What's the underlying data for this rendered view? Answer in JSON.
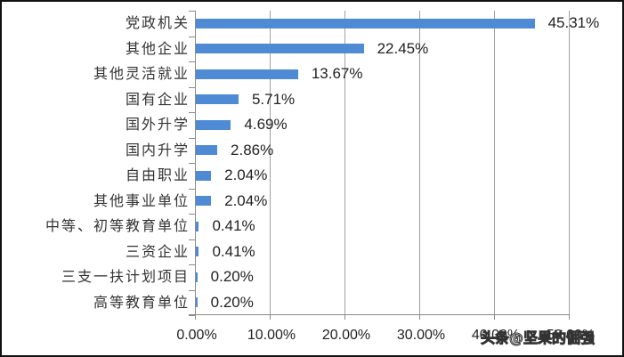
{
  "chart_data": {
    "type": "bar",
    "orientation": "horizontal",
    "title": "",
    "xlabel": "",
    "ylabel": "",
    "categories": [
      "党政机关",
      "其他企业",
      "其他灵活就业",
      "国有企业",
      "国外升学",
      "国内升学",
      "自由职业",
      "其他事业单位",
      "中等、初等教育单位",
      "三资企业",
      "三支一扶计划项目",
      "高等教育单位"
    ],
    "values": [
      45.31,
      22.45,
      13.67,
      5.71,
      4.69,
      2.86,
      2.04,
      2.04,
      0.41,
      0.41,
      0.2,
      0.2
    ],
    "value_labels": [
      "45.31%",
      "22.45%",
      "13.67%",
      "5.71%",
      "4.69%",
      "2.86%",
      "2.04%",
      "2.04%",
      "0.41%",
      "0.41%",
      "0.20%",
      "0.20%"
    ],
    "xlim": [
      0,
      50
    ],
    "xticks": [
      "0.00%",
      "10.00%",
      "20.00%",
      "30.00%",
      "40.00%",
      "50.00%"
    ],
    "grid": true,
    "bar_color": "#4f8ad4",
    "legend": null
  },
  "watermark": "头条@坚果的倔强"
}
